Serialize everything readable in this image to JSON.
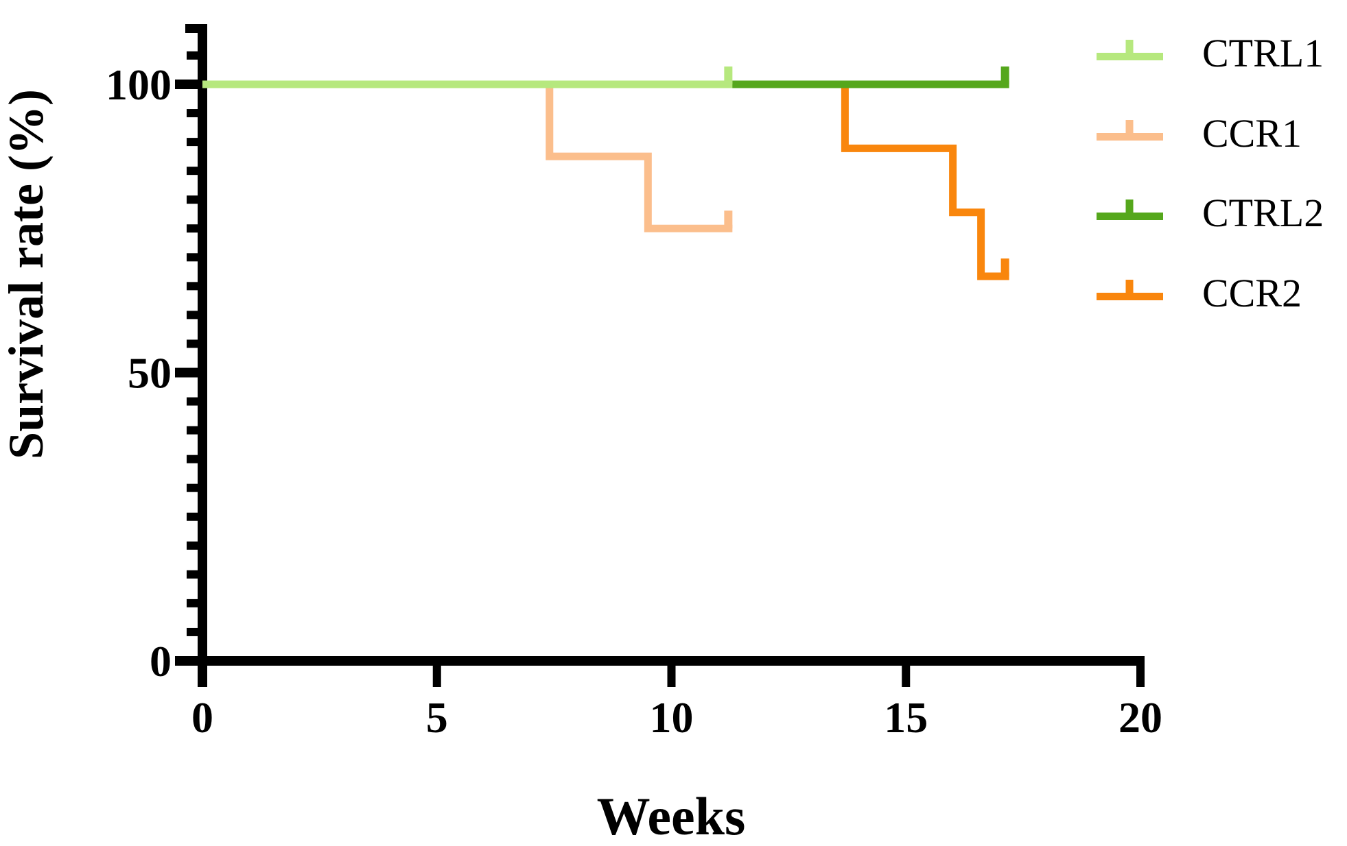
{
  "chart_data": {
    "type": "line",
    "subtype": "kaplan-meier-survival-step",
    "title": "",
    "xlabel": "Weeks",
    "ylabel": "Survival rate (%)",
    "x_axis": {
      "ticks": [
        0,
        5,
        10,
        15,
        20
      ],
      "tick_labels": [
        "0",
        "5",
        "10",
        "15",
        "20"
      ],
      "range": [
        0,
        20
      ],
      "minor_ticks": false
    },
    "y_axis": {
      "ticks": [
        0,
        50,
        100
      ],
      "tick_labels": [
        "0",
        "50",
        "100"
      ],
      "range": [
        0,
        110
      ],
      "minor_tick_step": 5
    },
    "grid": false,
    "legend_position": "top-right",
    "draw_order": [
      "CCR2",
      "CTRL2",
      "CCR1",
      "CTRL1"
    ],
    "series": [
      {
        "name": "CTRL1",
        "color": "#b6e87e",
        "steps": [
          {
            "x": 0,
            "y": 100
          },
          {
            "x": 11.3,
            "y": 100
          }
        ],
        "censor_marks": [
          {
            "x": 11.3,
            "y": 100
          }
        ]
      },
      {
        "name": "CCR1",
        "color": "#fbbe8c",
        "steps": [
          {
            "x": 0,
            "y": 100
          },
          {
            "x": 7.4,
            "y": 100
          },
          {
            "x": 7.4,
            "y": 87.5
          },
          {
            "x": 9.5,
            "y": 87.5
          },
          {
            "x": 9.5,
            "y": 75
          },
          {
            "x": 11.3,
            "y": 75
          }
        ],
        "censor_marks": [
          {
            "x": 11.3,
            "y": 75
          }
        ]
      },
      {
        "name": "CTRL2",
        "color": "#55a71c",
        "steps": [
          {
            "x": 0,
            "y": 100
          },
          {
            "x": 17.2,
            "y": 100
          }
        ],
        "censor_marks": [
          {
            "x": 17.2,
            "y": 100
          }
        ]
      },
      {
        "name": "CCR2",
        "color": "#f9860d",
        "steps": [
          {
            "x": 0,
            "y": 100
          },
          {
            "x": 13.7,
            "y": 100
          },
          {
            "x": 13.7,
            "y": 88.9
          },
          {
            "x": 16.0,
            "y": 88.9
          },
          {
            "x": 16.0,
            "y": 77.8
          },
          {
            "x": 16.6,
            "y": 77.8
          },
          {
            "x": 16.6,
            "y": 66.7
          },
          {
            "x": 17.2,
            "y": 66.7
          }
        ],
        "censor_marks": [
          {
            "x": 17.2,
            "y": 66.7
          }
        ]
      }
    ]
  },
  "legend": {
    "entries": [
      {
        "label": "CTRL1",
        "color": "#b6e87e"
      },
      {
        "label": "CCR1",
        "color": "#fbbe8c"
      },
      {
        "label": "CTRL2",
        "color": "#55a71c"
      },
      {
        "label": "CCR2",
        "color": "#f9860d"
      }
    ]
  }
}
